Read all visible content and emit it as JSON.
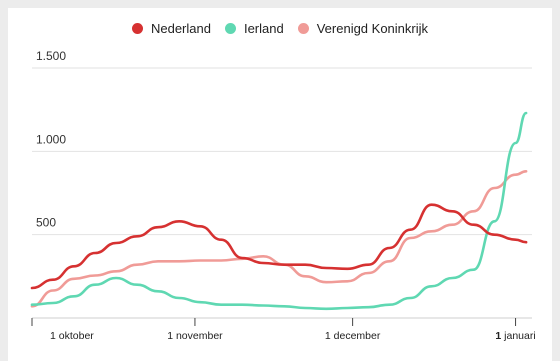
{
  "chart_data": {
    "type": "line",
    "title": "",
    "xlabel": "",
    "ylabel": "",
    "x": [
      "2020-10-01",
      "2020-10-05",
      "2020-10-09",
      "2020-10-13",
      "2020-10-17",
      "2020-10-21",
      "2020-10-25",
      "2020-10-29",
      "2020-11-02",
      "2020-11-06",
      "2020-11-10",
      "2020-11-14",
      "2020-11-18",
      "2020-11-22",
      "2020-11-26",
      "2020-11-30",
      "2020-12-04",
      "2020-12-08",
      "2020-12-12",
      "2020-12-16",
      "2020-12-20",
      "2020-12-24",
      "2020-12-28",
      "2021-01-01",
      "2021-01-03"
    ],
    "ylim": [
      0,
      1500
    ],
    "yticks": [
      {
        "value": 500,
        "label": "500"
      },
      {
        "value": 1000,
        "label": "1.000"
      },
      {
        "value": 1500,
        "label": "1.500"
      }
    ],
    "xticks": [
      {
        "date": "2020-10-01",
        "label": "1 oktober",
        "bold": false
      },
      {
        "date": "2020-11-01",
        "label": "1 november",
        "bold": false
      },
      {
        "date": "2020-12-01",
        "label": "1 december",
        "bold": false
      },
      {
        "date": "2021-01-01",
        "label_bold": "1",
        "label_rest": " januari",
        "bold": true
      }
    ],
    "grid": true,
    "legend_position": "top-center",
    "series": [
      {
        "name": "Nederland",
        "color": "#d63131",
        "values": [
          180,
          230,
          310,
          390,
          450,
          490,
          545,
          580,
          550,
          470,
          360,
          330,
          320,
          320,
          300,
          295,
          320,
          420,
          530,
          680,
          640,
          560,
          500,
          470,
          455
        ]
      },
      {
        "name": "Ierland",
        "color": "#5fd8b2",
        "values": [
          80,
          90,
          130,
          200,
          240,
          200,
          160,
          120,
          95,
          80,
          80,
          75,
          70,
          60,
          55,
          60,
          65,
          80,
          120,
          190,
          240,
          290,
          580,
          1050,
          1230
        ]
      },
      {
        "name": "Verenigd Koninkrijk",
        "color": "#f09b97",
        "values": [
          70,
          165,
          235,
          255,
          280,
          320,
          340,
          340,
          345,
          345,
          355,
          370,
          320,
          250,
          215,
          220,
          270,
          340,
          480,
          520,
          560,
          640,
          780,
          860,
          880
        ]
      }
    ]
  }
}
